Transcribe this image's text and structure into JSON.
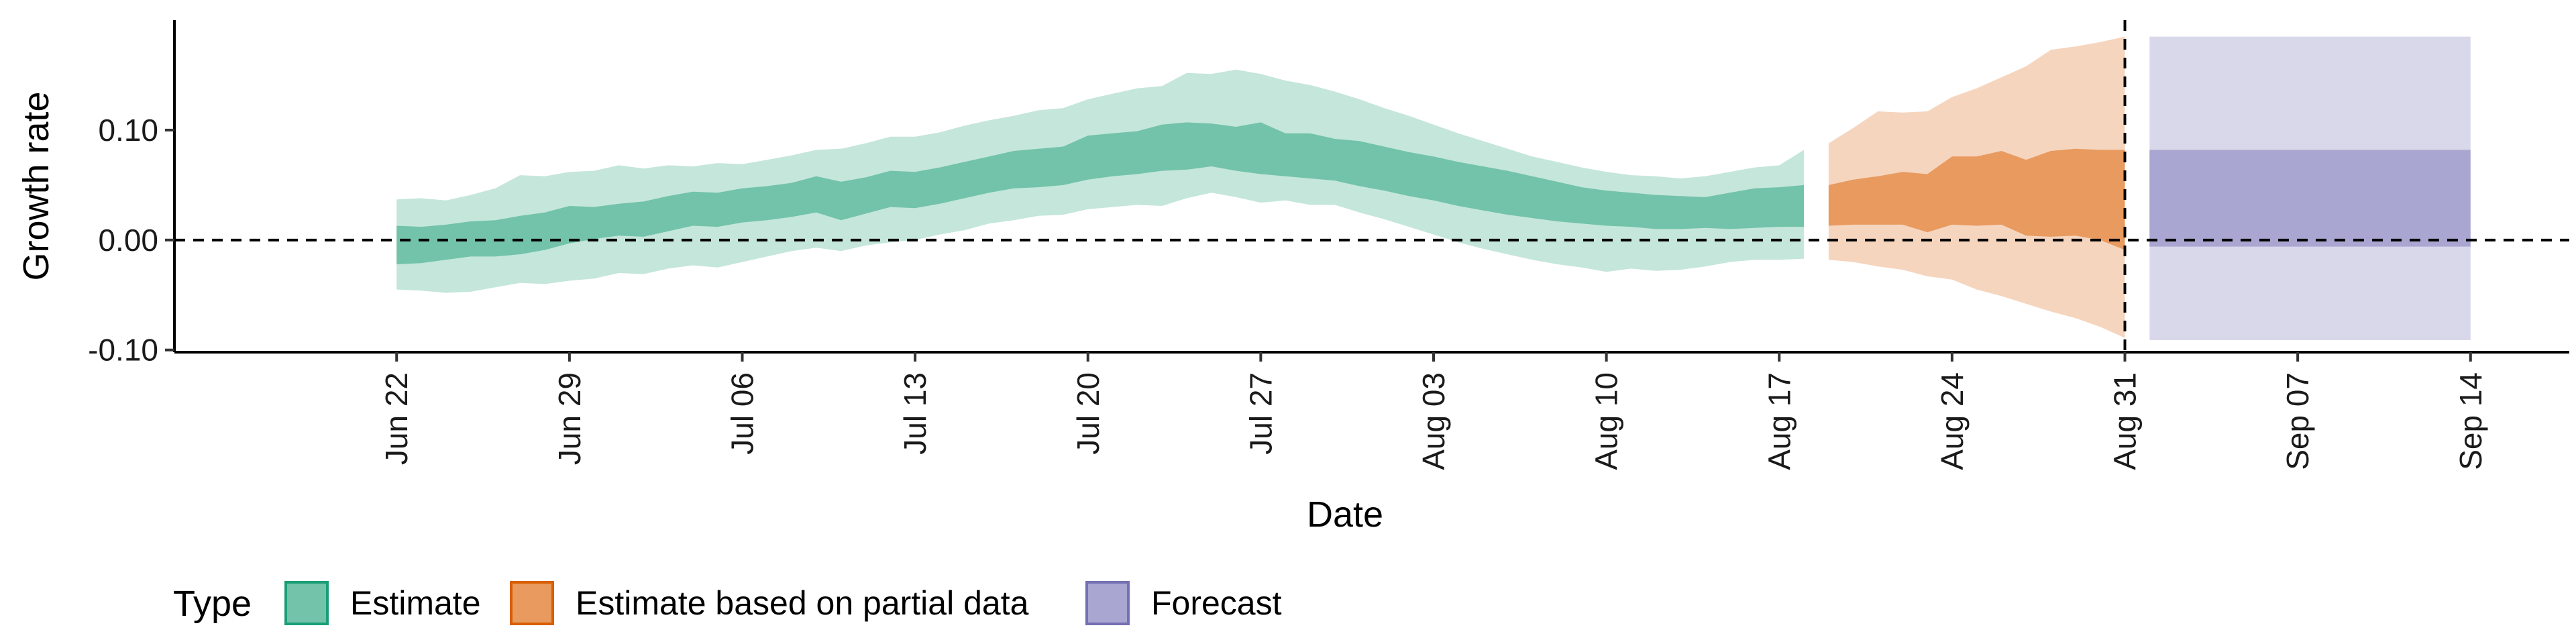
{
  "chart_data": {
    "type": "area",
    "xlabel": "Date",
    "ylabel": "Growth rate",
    "x_range": [
      "2021-06-13",
      "2021-09-18"
    ],
    "ylim": [
      -0.102,
      0.2
    ],
    "y_ticks": [
      {
        "value": 0.1,
        "label": "0.10"
      },
      {
        "value": 0.0,
        "label": "0.00"
      },
      {
        "value": -0.1,
        "label": "-0.10"
      }
    ],
    "x_ticks": [
      {
        "date": "2021-06-22",
        "label": "Jun 22"
      },
      {
        "date": "2021-06-29",
        "label": "Jun 29"
      },
      {
        "date": "2021-07-06",
        "label": "Jul 06"
      },
      {
        "date": "2021-07-13",
        "label": "Jul 13"
      },
      {
        "date": "2021-07-20",
        "label": "Jul 20"
      },
      {
        "date": "2021-07-27",
        "label": "Jul 27"
      },
      {
        "date": "2021-08-03",
        "label": "Aug 03"
      },
      {
        "date": "2021-08-10",
        "label": "Aug 10"
      },
      {
        "date": "2021-08-17",
        "label": "Aug 17"
      },
      {
        "date": "2021-08-24",
        "label": "Aug 24"
      },
      {
        "date": "2021-08-31",
        "label": "Aug 31"
      },
      {
        "date": "2021-09-07",
        "label": "Sep 07"
      },
      {
        "date": "2021-09-14",
        "label": "Sep 14"
      }
    ],
    "hline": 0,
    "vline": "2021-08-31",
    "legend": {
      "title": "Type",
      "position": "bottom",
      "entries": [
        {
          "label": "Estimate",
          "fill": "#72c3a9",
          "stroke": "#1b9e77"
        },
        {
          "label": "Estimate based on partial data",
          "fill": "#e89a5f",
          "stroke": "#d95f02"
        },
        {
          "label": "Forecast",
          "fill": "#a9a6d1",
          "stroke": "#7570b3"
        }
      ]
    },
    "series": [
      {
        "type": "Estimate",
        "inner_color": "#72c3a9",
        "outer_color": "#c5e6db",
        "points": [
          {
            "date": "2021-06-22",
            "inner": [
              -0.022,
              0.013
            ],
            "outer": [
              -0.045,
              0.037
            ]
          },
          {
            "date": "2021-06-23",
            "inner": [
              -0.021,
              0.012
            ],
            "outer": [
              -0.046,
              0.038
            ]
          },
          {
            "date": "2021-06-24",
            "inner": [
              -0.018,
              0.014
            ],
            "outer": [
              -0.048,
              0.036
            ]
          },
          {
            "date": "2021-06-25",
            "inner": [
              -0.015,
              0.017
            ],
            "outer": [
              -0.047,
              0.041
            ]
          },
          {
            "date": "2021-06-26",
            "inner": [
              -0.015,
              0.018
            ],
            "outer": [
              -0.043,
              0.047
            ]
          },
          {
            "date": "2021-06-27",
            "inner": [
              -0.013,
              0.022
            ],
            "outer": [
              -0.039,
              0.059
            ]
          },
          {
            "date": "2021-06-28",
            "inner": [
              -0.009,
              0.025
            ],
            "outer": [
              -0.04,
              0.058
            ]
          },
          {
            "date": "2021-06-29",
            "inner": [
              -0.003,
              0.031
            ],
            "outer": [
              -0.037,
              0.062
            ]
          },
          {
            "date": "2021-06-30",
            "inner": [
              0.001,
              0.03
            ],
            "outer": [
              -0.035,
              0.063
            ]
          },
          {
            "date": "2021-07-01",
            "inner": [
              0.004,
              0.033
            ],
            "outer": [
              -0.03,
              0.068
            ]
          },
          {
            "date": "2021-07-02",
            "inner": [
              0.003,
              0.035
            ],
            "outer": [
              -0.031,
              0.065
            ]
          },
          {
            "date": "2021-07-03",
            "inner": [
              0.008,
              0.04
            ],
            "outer": [
              -0.026,
              0.068
            ]
          },
          {
            "date": "2021-07-04",
            "inner": [
              0.013,
              0.044
            ],
            "outer": [
              -0.023,
              0.067
            ]
          },
          {
            "date": "2021-07-05",
            "inner": [
              0.012,
              0.043
            ],
            "outer": [
              -0.025,
              0.07
            ]
          },
          {
            "date": "2021-07-06",
            "inner": [
              0.016,
              0.047
            ],
            "outer": [
              -0.02,
              0.069
            ]
          },
          {
            "date": "2021-07-07",
            "inner": [
              0.018,
              0.049
            ],
            "outer": [
              -0.015,
              0.073
            ]
          },
          {
            "date": "2021-07-08",
            "inner": [
              0.021,
              0.052
            ],
            "outer": [
              -0.01,
              0.077
            ]
          },
          {
            "date": "2021-07-09",
            "inner": [
              0.025,
              0.058
            ],
            "outer": [
              -0.007,
              0.082
            ]
          },
          {
            "date": "2021-07-10",
            "inner": [
              0.018,
              0.053
            ],
            "outer": [
              -0.01,
              0.083
            ]
          },
          {
            "date": "2021-07-11",
            "inner": [
              0.024,
              0.057
            ],
            "outer": [
              -0.005,
              0.088
            ]
          },
          {
            "date": "2021-07-12",
            "inner": [
              0.03,
              0.063
            ],
            "outer": [
              -0.002,
              0.094
            ]
          },
          {
            "date": "2021-07-13",
            "inner": [
              0.029,
              0.062
            ],
            "outer": [
              0.0,
              0.094
            ]
          },
          {
            "date": "2021-07-14",
            "inner": [
              0.033,
              0.066
            ],
            "outer": [
              0.005,
              0.098
            ]
          },
          {
            "date": "2021-07-15",
            "inner": [
              0.038,
              0.071
            ],
            "outer": [
              0.009,
              0.104
            ]
          },
          {
            "date": "2021-07-16",
            "inner": [
              0.043,
              0.076
            ],
            "outer": [
              0.015,
              0.109
            ]
          },
          {
            "date": "2021-07-17",
            "inner": [
              0.047,
              0.081
            ],
            "outer": [
              0.018,
              0.113
            ]
          },
          {
            "date": "2021-07-18",
            "inner": [
              0.048,
              0.083
            ],
            "outer": [
              0.022,
              0.118
            ]
          },
          {
            "date": "2021-07-19",
            "inner": [
              0.05,
              0.085
            ],
            "outer": [
              0.023,
              0.12
            ]
          },
          {
            "date": "2021-07-20",
            "inner": [
              0.055,
              0.095
            ],
            "outer": [
              0.028,
              0.128
            ]
          },
          {
            "date": "2021-07-21",
            "inner": [
              0.058,
              0.097
            ],
            "outer": [
              0.03,
              0.133
            ]
          },
          {
            "date": "2021-07-22",
            "inner": [
              0.06,
              0.099
            ],
            "outer": [
              0.032,
              0.138
            ]
          },
          {
            "date": "2021-07-23",
            "inner": [
              0.063,
              0.105
            ],
            "outer": [
              0.031,
              0.14
            ]
          },
          {
            "date": "2021-07-24",
            "inner": [
              0.064,
              0.107
            ],
            "outer": [
              0.038,
              0.152
            ]
          },
          {
            "date": "2021-07-25",
            "inner": [
              0.067,
              0.106
            ],
            "outer": [
              0.043,
              0.151
            ]
          },
          {
            "date": "2021-07-26",
            "inner": [
              0.063,
              0.103
            ],
            "outer": [
              0.039,
              0.155
            ]
          },
          {
            "date": "2021-07-27",
            "inner": [
              0.06,
              0.107
            ],
            "outer": [
              0.034,
              0.151
            ]
          },
          {
            "date": "2021-07-28",
            "inner": [
              0.058,
              0.097
            ],
            "outer": [
              0.036,
              0.145
            ]
          },
          {
            "date": "2021-07-29",
            "inner": [
              0.056,
              0.097
            ],
            "outer": [
              0.032,
              0.141
            ]
          },
          {
            "date": "2021-07-30",
            "inner": [
              0.054,
              0.092
            ],
            "outer": [
              0.032,
              0.135
            ]
          },
          {
            "date": "2021-07-31",
            "inner": [
              0.049,
              0.09
            ],
            "outer": [
              0.025,
              0.128
            ]
          },
          {
            "date": "2021-08-01",
            "inner": [
              0.045,
              0.085
            ],
            "outer": [
              0.019,
              0.12
            ]
          },
          {
            "date": "2021-08-02",
            "inner": [
              0.04,
              0.08
            ],
            "outer": [
              0.012,
              0.113
            ]
          },
          {
            "date": "2021-08-03",
            "inner": [
              0.036,
              0.076
            ],
            "outer": [
              0.005,
              0.105
            ]
          },
          {
            "date": "2021-08-04",
            "inner": [
              0.031,
              0.071
            ],
            "outer": [
              -0.002,
              0.097
            ]
          },
          {
            "date": "2021-08-05",
            "inner": [
              0.027,
              0.067
            ],
            "outer": [
              -0.008,
              0.09
            ]
          },
          {
            "date": "2021-08-06",
            "inner": [
              0.023,
              0.063
            ],
            "outer": [
              -0.013,
              0.083
            ]
          },
          {
            "date": "2021-08-07",
            "inner": [
              0.02,
              0.058
            ],
            "outer": [
              -0.018,
              0.076
            ]
          },
          {
            "date": "2021-08-08",
            "inner": [
              0.017,
              0.053
            ],
            "outer": [
              -0.022,
              0.071
            ]
          },
          {
            "date": "2021-08-09",
            "inner": [
              0.015,
              0.048
            ],
            "outer": [
              -0.025,
              0.066
            ]
          },
          {
            "date": "2021-08-10",
            "inner": [
              0.013,
              0.045
            ],
            "outer": [
              -0.029,
              0.062
            ]
          },
          {
            "date": "2021-08-11",
            "inner": [
              0.012,
              0.043
            ],
            "outer": [
              -0.026,
              0.059
            ]
          },
          {
            "date": "2021-08-12",
            "inner": [
              0.01,
              0.041
            ],
            "outer": [
              -0.028,
              0.058
            ]
          },
          {
            "date": "2021-08-13",
            "inner": [
              0.01,
              0.04
            ],
            "outer": [
              -0.027,
              0.056
            ]
          },
          {
            "date": "2021-08-14",
            "inner": [
              0.011,
              0.039
            ],
            "outer": [
              -0.024,
              0.058
            ]
          },
          {
            "date": "2021-08-15",
            "inner": [
              0.01,
              0.043
            ],
            "outer": [
              -0.02,
              0.062
            ]
          },
          {
            "date": "2021-08-16",
            "inner": [
              0.011,
              0.047
            ],
            "outer": [
              -0.018,
              0.066
            ]
          },
          {
            "date": "2021-08-17",
            "inner": [
              0.012,
              0.048
            ],
            "outer": [
              -0.018,
              0.068
            ]
          },
          {
            "date": "2021-08-18",
            "inner": [
              0.012,
              0.05
            ],
            "outer": [
              -0.017,
              0.082
            ]
          }
        ]
      },
      {
        "type": "Estimate based on partial data",
        "inner_color": "#e89a5f",
        "outer_color": "#f6d5be",
        "points": [
          {
            "date": "2021-08-19",
            "inner": [
              0.013,
              0.05
            ],
            "outer": [
              -0.018,
              0.088
            ]
          },
          {
            "date": "2021-08-20",
            "inner": [
              0.014,
              0.055
            ],
            "outer": [
              -0.02,
              0.102
            ]
          },
          {
            "date": "2021-08-21",
            "inner": [
              0.014,
              0.058
            ],
            "outer": [
              -0.024,
              0.117
            ]
          },
          {
            "date": "2021-08-22",
            "inner": [
              0.014,
              0.062
            ],
            "outer": [
              -0.027,
              0.116
            ]
          },
          {
            "date": "2021-08-23",
            "inner": [
              0.007,
              0.06
            ],
            "outer": [
              -0.033,
              0.117
            ]
          },
          {
            "date": "2021-08-24",
            "inner": [
              0.014,
              0.076
            ],
            "outer": [
              -0.036,
              0.13
            ]
          },
          {
            "date": "2021-08-25",
            "inner": [
              0.013,
              0.076
            ],
            "outer": [
              -0.045,
              0.138
            ]
          },
          {
            "date": "2021-08-26",
            "inner": [
              0.014,
              0.081
            ],
            "outer": [
              -0.051,
              0.148
            ]
          },
          {
            "date": "2021-08-27",
            "inner": [
              0.004,
              0.073
            ],
            "outer": [
              -0.058,
              0.158
            ]
          },
          {
            "date": "2021-08-28",
            "inner": [
              0.003,
              0.081
            ],
            "outer": [
              -0.065,
              0.173
            ]
          },
          {
            "date": "2021-08-29",
            "inner": [
              0.004,
              0.083
            ],
            "outer": [
              -0.071,
              0.176
            ]
          },
          {
            "date": "2021-08-30",
            "inner": [
              0.0,
              0.082
            ],
            "outer": [
              -0.079,
              0.18
            ]
          },
          {
            "date": "2021-08-31",
            "inner": [
              -0.009,
              0.082
            ],
            "outer": [
              -0.089,
              0.185
            ]
          }
        ]
      },
      {
        "type": "Forecast",
        "inner_color": "#a9a6d1",
        "outer_color": "#d9d8eb",
        "points": [
          {
            "date": "2021-09-01",
            "inner": [
              -0.006,
              0.082
            ],
            "outer": [
              -0.091,
              0.185
            ]
          },
          {
            "date": "2021-09-14",
            "inner": [
              -0.006,
              0.082
            ],
            "outer": [
              -0.091,
              0.185
            ]
          }
        ]
      }
    ]
  }
}
